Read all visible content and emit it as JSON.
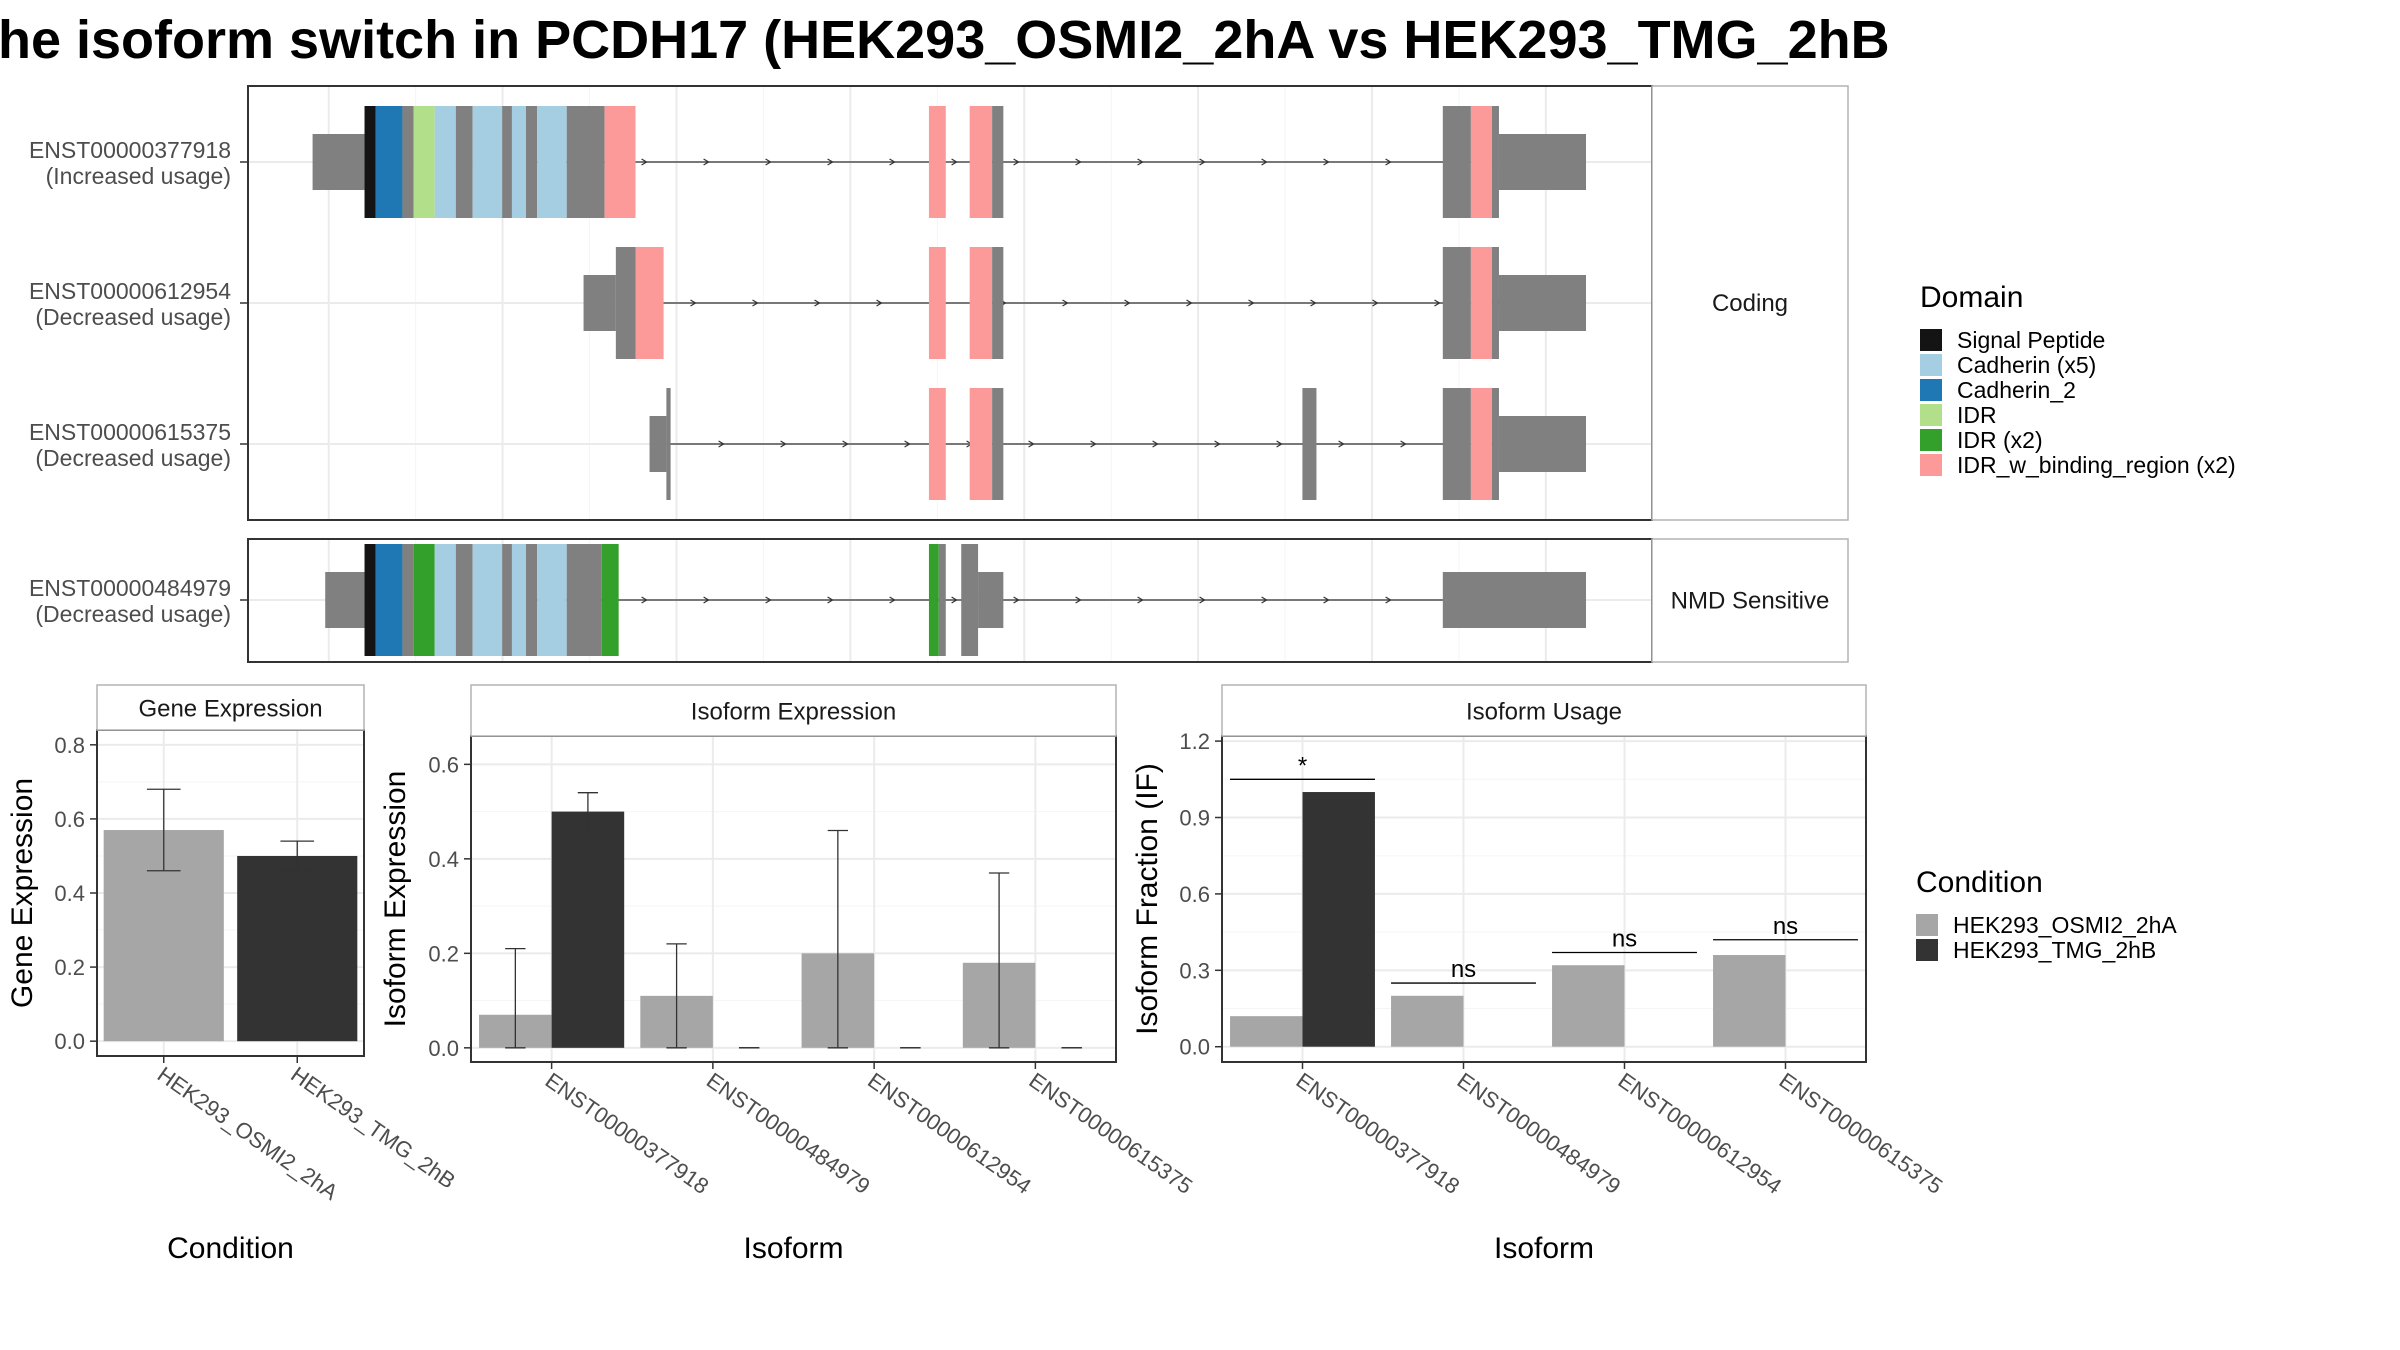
{
  "chart_data": {
    "title": "he isoform switch in PCDH17 (HEK293_OSMI2_2hA vs HEK293_TMG_2hB",
    "colors": {
      "intron": "#808080",
      "exon_default": "#808080",
      "OSMI2": "#a6a6a6",
      "TMG": "#333333",
      "grid": "#ebebeb",
      "frame": "#333333"
    },
    "legend_domain": {
      "title": "Domain",
      "placement": "right",
      "items": [
        {
          "label": "Signal Peptide",
          "color": "#141414"
        },
        {
          "label": "Cadherin (x5)",
          "color": "#a6cee3"
        },
        {
          "label": "Cadherin_2",
          "color": "#1f78b4"
        },
        {
          "label": "IDR",
          "color": "#b2df8a"
        },
        {
          "label": "IDR (x2)",
          "color": "#33a02c"
        },
        {
          "label": "IDR_w_binding_region (x2)",
          "color": "#fb9a99"
        }
      ]
    },
    "legend_condition": {
      "title": "Condition",
      "placement": "right",
      "items": [
        {
          "label": "HEK293_OSMI2_2hA",
          "color": "#a6a6a6"
        },
        {
          "label": "HEK293_TMG_2hB",
          "color": "#333333"
        }
      ]
    },
    "transcript_panels": [
      {
        "strip": "Coding",
        "isoforms": [
          {
            "id": "ENST00000377918",
            "usage": "(Increased usage)",
            "intron": [
              0.197,
              0.953
            ],
            "segments": [
              [
                0.046,
                0.083,
                "utr",
                null
              ],
              [
                0.083,
                0.091,
                "cds",
                "#141414"
              ],
              [
                0.091,
                0.11,
                "cds",
                "#1f78b4"
              ],
              [
                0.11,
                0.118,
                "cds",
                null
              ],
              [
                0.118,
                0.133,
                "cds",
                "#b2df8a"
              ],
              [
                0.133,
                0.148,
                "cds",
                "#a6cee3"
              ],
              [
                0.148,
                0.16,
                "cds",
                null
              ],
              [
                0.16,
                0.181,
                "cds",
                "#a6cee3"
              ],
              [
                0.181,
                0.188,
                "cds",
                null
              ],
              [
                0.188,
                0.198,
                "cds",
                "#a6cee3"
              ],
              [
                0.198,
                0.206,
                "cds",
                null
              ],
              [
                0.206,
                0.227,
                "cds",
                "#a6cee3"
              ],
              [
                0.227,
                0.254,
                "cds",
                null
              ],
              [
                0.254,
                0.276,
                "cds",
                "#fb9a99"
              ],
              [
                0.485,
                0.497,
                "cds",
                "#fb9a99"
              ],
              [
                0.514,
                0.53,
                "cds",
                "#fb9a99"
              ],
              [
                0.53,
                0.538,
                "cds",
                null
              ],
              [
                0.851,
                0.871,
                "cds",
                null
              ],
              [
                0.871,
                0.886,
                "cds",
                "#fb9a99"
              ],
              [
                0.886,
                0.891,
                "cds",
                null
              ],
              [
                0.891,
                0.953,
                "utr",
                null
              ]
            ]
          },
          {
            "id": "ENST00000612954",
            "usage": "(Decreased usage)",
            "intron": [
              0.276,
              0.953
            ],
            "segments": [
              [
                0.239,
                0.262,
                "utr",
                null
              ],
              [
                0.262,
                0.276,
                "cds",
                null
              ],
              [
                0.276,
                0.296,
                "cds",
                "#fb9a99"
              ],
              [
                0.485,
                0.497,
                "cds",
                "#fb9a99"
              ],
              [
                0.514,
                0.53,
                "cds",
                "#fb9a99"
              ],
              [
                0.53,
                0.538,
                "cds",
                null
              ],
              [
                0.851,
                0.871,
                "cds",
                null
              ],
              [
                0.871,
                0.886,
                "cds",
                "#fb9a99"
              ],
              [
                0.886,
                0.891,
                "cds",
                null
              ],
              [
                0.891,
                0.953,
                "utr",
                null
              ]
            ]
          },
          {
            "id": "ENST00000615375",
            "usage": "(Decreased usage)",
            "intron": [
              0.296,
              0.953
            ],
            "segments": [
              [
                0.286,
                0.298,
                "utr",
                null
              ],
              [
                0.298,
                0.301,
                "cds",
                null
              ],
              [
                0.485,
                0.497,
                "cds",
                "#fb9a99"
              ],
              [
                0.514,
                0.53,
                "cds",
                "#fb9a99"
              ],
              [
                0.53,
                0.538,
                "cds",
                null
              ],
              [
                0.751,
                0.761,
                "cds",
                null
              ],
              [
                0.851,
                0.871,
                "cds",
                null
              ],
              [
                0.871,
                0.886,
                "cds",
                "#fb9a99"
              ],
              [
                0.886,
                0.891,
                "cds",
                null
              ],
              [
                0.891,
                0.953,
                "utr",
                null
              ]
            ]
          }
        ]
      },
      {
        "strip": "NMD Sensitive",
        "isoforms": [
          {
            "id": "ENST00000484979",
            "usage": "(Decreased usage)",
            "intron": [
              0.197,
              0.953
            ],
            "segments": [
              [
                0.055,
                0.083,
                "utr",
                null
              ],
              [
                0.083,
                0.091,
                "cds",
                "#141414"
              ],
              [
                0.091,
                0.11,
                "cds",
                "#1f78b4"
              ],
              [
                0.11,
                0.118,
                "cds",
                null
              ],
              [
                0.118,
                0.133,
                "cds",
                "#33a02c"
              ],
              [
                0.133,
                0.148,
                "cds",
                "#a6cee3"
              ],
              [
                0.148,
                0.16,
                "cds",
                null
              ],
              [
                0.16,
                0.181,
                "cds",
                "#a6cee3"
              ],
              [
                0.181,
                0.188,
                "cds",
                null
              ],
              [
                0.188,
                0.198,
                "cds",
                "#a6cee3"
              ],
              [
                0.198,
                0.206,
                "cds",
                null
              ],
              [
                0.206,
                0.227,
                "cds",
                "#a6cee3"
              ],
              [
                0.227,
                0.252,
                "cds",
                null
              ],
              [
                0.252,
                0.264,
                "cds",
                "#33a02c"
              ],
              [
                0.485,
                0.492,
                "cds",
                "#33a02c"
              ],
              [
                0.492,
                0.497,
                "cds",
                null
              ],
              [
                0.508,
                0.52,
                "cds",
                null
              ],
              [
                0.52,
                0.538,
                "utr",
                null
              ],
              [
                0.851,
                0.953,
                "utr",
                null
              ]
            ]
          }
        ]
      }
    ],
    "gene_expression": {
      "type": "bar",
      "strip": "Gene Expression",
      "xlabel": "Condition",
      "ylabel": "Gene Expression",
      "ylim": [
        -0.04,
        0.84
      ],
      "yticks": [
        "0.0",
        "0.2",
        "0.4",
        "0.6",
        "0.8"
      ],
      "categories": [
        "HEK293_OSMI2_2hA",
        "HEK293_TMG_2hB"
      ],
      "values": [
        0.57,
        0.5
      ],
      "errors": [
        [
          0.46,
          0.68
        ],
        [
          0.46,
          0.54
        ]
      ]
    },
    "isoform_expression": {
      "type": "bar",
      "strip": "Isoform Expression",
      "xlabel": "Isoform",
      "ylabel": "Isoform Expression",
      "ylim": [
        -0.03,
        0.66
      ],
      "yticks": [
        "0.0",
        "0.2",
        "0.4",
        "0.6"
      ],
      "categories": [
        "ENST00000377918",
        "ENST00000484979",
        "ENST00000612954",
        "ENST00000615375"
      ],
      "series": [
        {
          "name": "HEK293_OSMI2_2hA",
          "values": [
            0.07,
            0.11,
            0.2,
            0.18
          ],
          "errors": [
            [
              0.0,
              0.21
            ],
            [
              0.0,
              0.22
            ],
            [
              0.0,
              0.46
            ],
            [
              0.0,
              0.37
            ]
          ]
        },
        {
          "name": "HEK293_TMG_2hB",
          "values": [
            0.5,
            0.0,
            0.0,
            0.0
          ],
          "errors": [
            [
              0.46,
              0.54
            ],
            [
              0.0,
              0.0
            ],
            [
              0.0,
              0.0
            ],
            [
              0.0,
              0.0
            ]
          ]
        }
      ]
    },
    "isoform_usage": {
      "type": "bar",
      "strip": "Isoform Usage",
      "xlabel": "Isoform",
      "ylabel": "Isoform Fraction (IF)",
      "ylim": [
        -0.06,
        1.22
      ],
      "yticks": [
        "0.0",
        "0.3",
        "0.6",
        "0.9",
        "1.2"
      ],
      "categories": [
        "ENST00000377918",
        "ENST00000484979",
        "ENST00000612954",
        "ENST00000615375"
      ],
      "series": [
        {
          "name": "HEK293_OSMI2_2hA",
          "values": [
            0.12,
            0.2,
            0.32,
            0.36
          ]
        },
        {
          "name": "HEK293_TMG_2hB",
          "values": [
            1.0,
            0.0,
            0.0,
            0.0
          ]
        }
      ],
      "significance": [
        {
          "label": "*",
          "y": 1.05
        },
        {
          "label": "ns",
          "y": 0.25
        },
        {
          "label": "ns",
          "y": 0.37
        },
        {
          "label": "ns",
          "y": 0.42
        }
      ]
    }
  }
}
